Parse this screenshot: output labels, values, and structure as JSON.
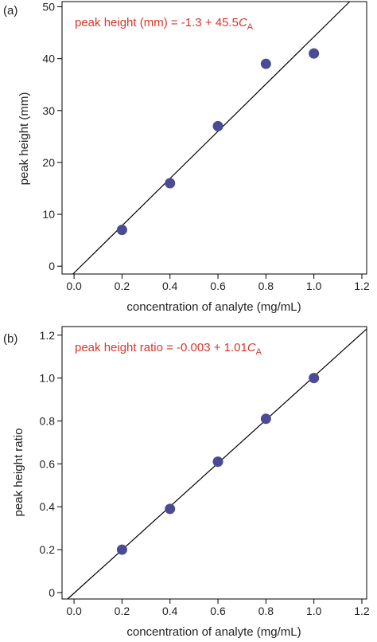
{
  "colors": {
    "equation": "#d9352a",
    "points": "#4a4a95",
    "fit_line": "#000000",
    "axis": "#000000"
  },
  "chart_data": [
    {
      "type": "scatter",
      "panel_label": "(a)",
      "xlabel": "concentration of analyte (mg/mL)",
      "ylabel": "peak height (mm)",
      "xlim": [
        -0.05,
        1.22
      ],
      "ylim": [
        -1.5,
        51
      ],
      "xticks": [
        0,
        0.2,
        0.4,
        0.6,
        0.8,
        1.0,
        1.2
      ],
      "xtick_labels": [
        "0.0",
        "0.2",
        "0.4",
        "0.6",
        "0.8",
        "1.0",
        "1.2"
      ],
      "yticks": [
        0,
        10,
        20,
        30,
        40,
        50
      ],
      "ytick_labels": [
        "0",
        "10",
        "20",
        "30",
        "40",
        "50"
      ],
      "x": [
        0.2,
        0.4,
        0.6,
        0.8,
        1.0
      ],
      "y": [
        7,
        16,
        27,
        39,
        41
      ],
      "fit": {
        "intercept": -1.3,
        "slope": 45.5
      },
      "equation": {
        "lhs": "peak height (mm) = -1.3 + 45.5",
        "var": "C",
        "sub": "A"
      },
      "grid": false
    },
    {
      "type": "scatter",
      "panel_label": "(b)",
      "xlabel": "concentration of analyte (mg/mL)",
      "ylabel": "peak height ratio",
      "xlim": [
        -0.05,
        1.22
      ],
      "ylim": [
        -0.03,
        1.24
      ],
      "xticks": [
        0,
        0.2,
        0.4,
        0.6,
        0.8,
        1.0,
        1.2
      ],
      "xtick_labels": [
        "0.0",
        "0.2",
        "0.4",
        "0.6",
        "0.8",
        "1.0",
        "1.2"
      ],
      "yticks": [
        0,
        0.2,
        0.4,
        0.6,
        0.8,
        1.0,
        1.2
      ],
      "ytick_labels": [
        "0",
        "0.2",
        "0.4",
        "0.6",
        "0.8",
        "1.0",
        "1.2"
      ],
      "x": [
        0.2,
        0.4,
        0.6,
        0.8,
        1.0
      ],
      "y": [
        0.2,
        0.39,
        0.61,
        0.81,
        1.0
      ],
      "fit": {
        "intercept": -0.003,
        "slope": 1.01
      },
      "equation": {
        "lhs": "peak height ratio = -0.003 + 1.01",
        "var": "C",
        "sub": "A"
      },
      "grid": false
    }
  ]
}
